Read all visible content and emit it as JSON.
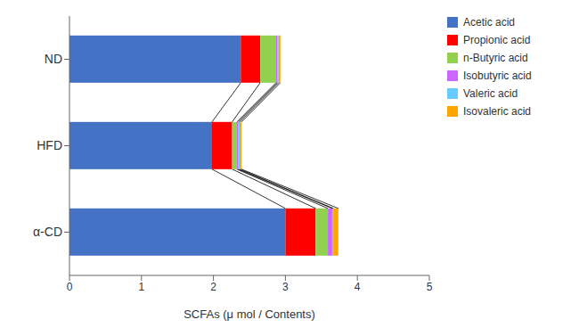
{
  "chart_data": {
    "type": "bar",
    "orientation": "horizontal",
    "stacked": true,
    "xlabel": "SCFAs (μ mol / Contents)",
    "categories": [
      "α-CD",
      "HFD",
      "ND"
    ],
    "series": [
      {
        "name": "Acetic acid",
        "color": "#4472C4",
        "values": [
          3.0,
          1.98,
          2.38
        ]
      },
      {
        "name": "Propionic acid",
        "color": "#FF0000",
        "values": [
          0.42,
          0.28,
          0.27
        ]
      },
      {
        "name": "n-Butyric acid",
        "color": "#92D050",
        "values": [
          0.17,
          0.065,
          0.22
        ]
      },
      {
        "name": "Isobutyric acid",
        "color": "#CC66FF",
        "values": [
          0.06,
          0.02,
          0.02
        ]
      },
      {
        "name": "Valeric acid",
        "color": "#66CCFF",
        "values": [
          0.015,
          0.02,
          0.015
        ]
      },
      {
        "name": "Isovaleric acid",
        "color": "#FFA500",
        "values": [
          0.07,
          0.025,
          0.025
        ]
      }
    ],
    "xlim": [
      0,
      5
    ],
    "xticks": [
      0,
      1,
      2,
      3,
      4,
      5
    ],
    "grid": false,
    "legend": "upper right"
  }
}
